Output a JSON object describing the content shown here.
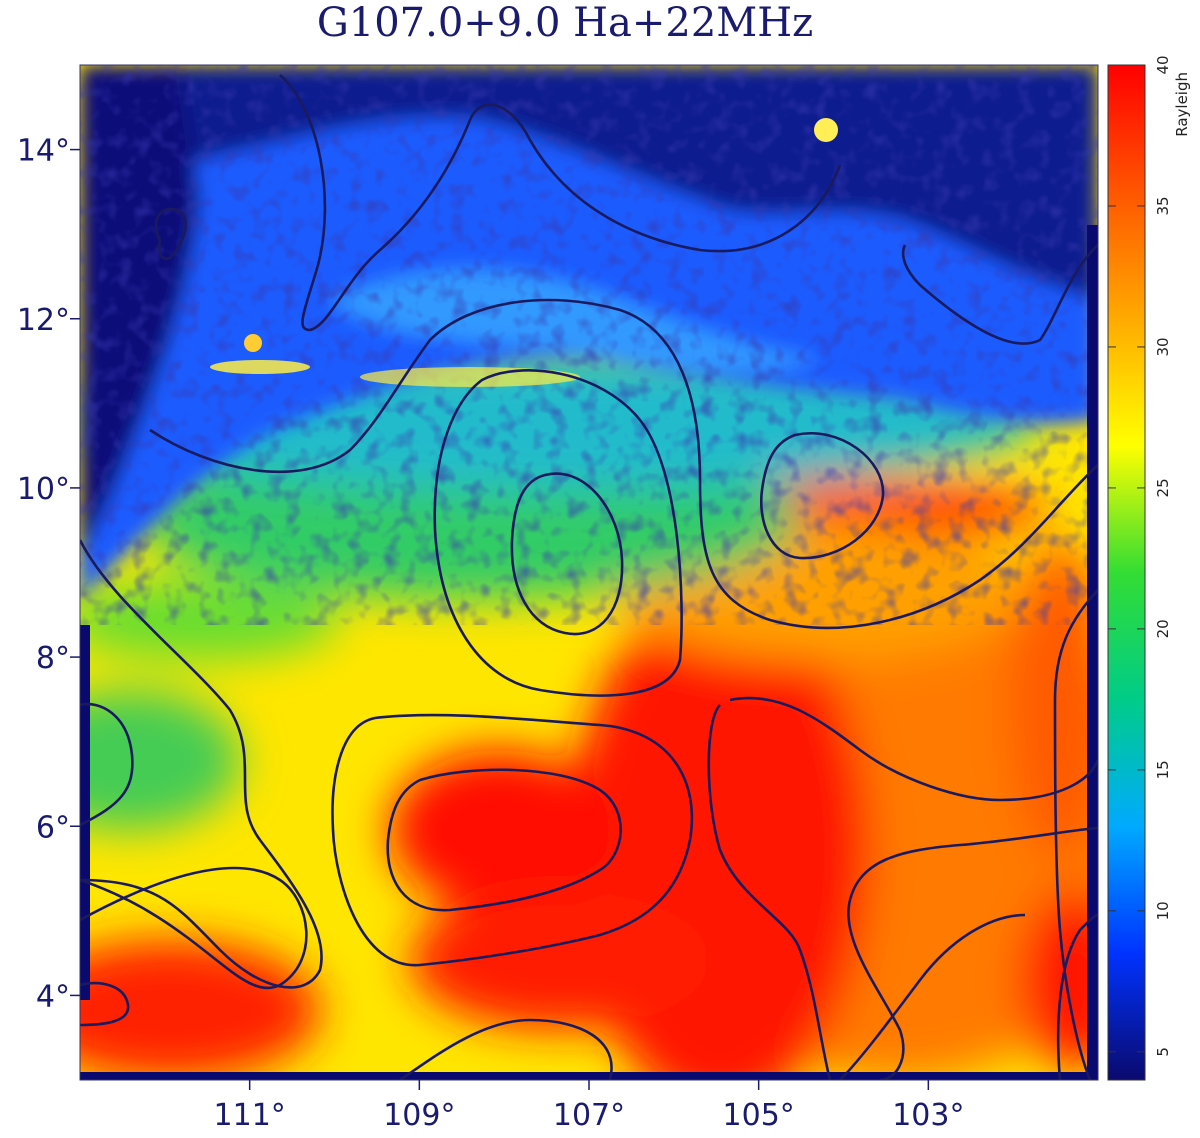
{
  "chart_data": {
    "type": "heatmap",
    "title": "G107.0+9.0  Ha+22MHz",
    "x_axis": {
      "range": [
        113,
        101
      ],
      "ticks": [
        111,
        109,
        107,
        105,
        103
      ],
      "tick_labels": [
        "111°",
        "109°",
        "107°",
        "105°",
        "103°"
      ]
    },
    "y_axis": {
      "range": [
        3,
        15
      ],
      "ticks": [
        4,
        6,
        8,
        10,
        12,
        14
      ],
      "tick_labels": [
        "4°",
        "6°",
        "8°",
        "10°",
        "12°",
        "14°"
      ]
    },
    "colorbar": {
      "label": "Rayleigh",
      "range": [
        4,
        40
      ],
      "ticks": [
        5,
        10,
        15,
        20,
        25,
        30,
        35,
        40
      ],
      "tick_labels": [
        "5",
        "10",
        "15",
        "20",
        "25",
        "30",
        "35",
        "40"
      ],
      "colors": [
        "#0a0a6e",
        "#0033ff",
        "#00aaff",
        "#00cc88",
        "#33dd33",
        "#ffff00",
        "#ffaa00",
        "#ff5500",
        "#ff0000"
      ]
    },
    "grid": false,
    "contours_color": "#1a1a5e"
  }
}
